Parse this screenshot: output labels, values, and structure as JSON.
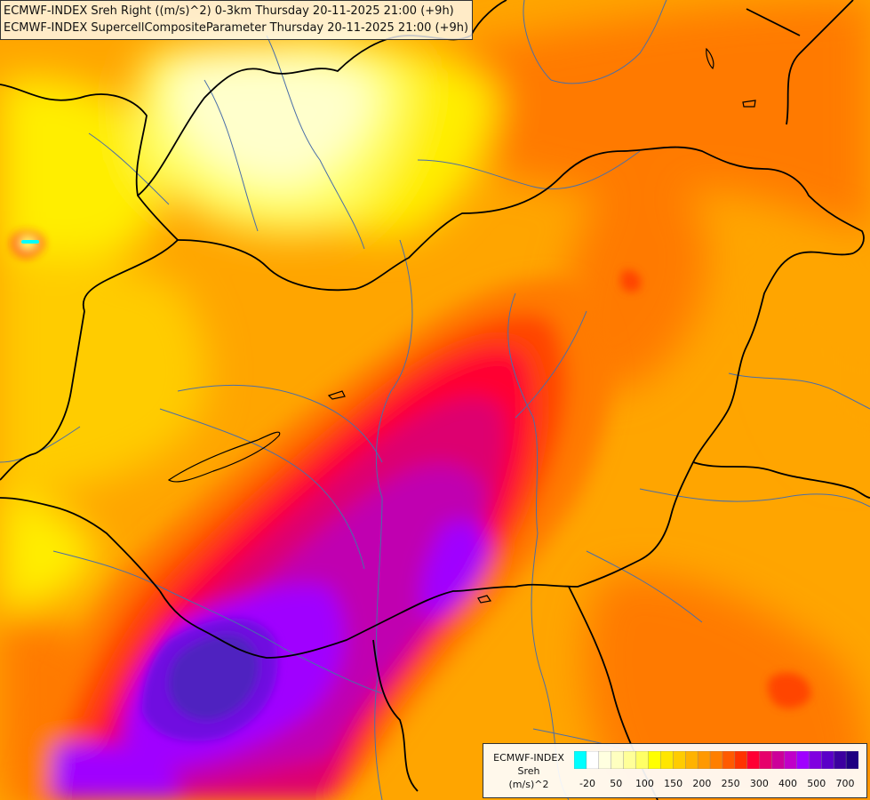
{
  "header": {
    "line1": "ECMWF-INDEX Sreh Right ((m/s)^2) 0-3km Thursday 20-11-2025 21:00 (+9h)",
    "line2": "ECMWF-INDEX SupercellCompositeParameter Thursday 20-11-2025 21:00 (+9h)"
  },
  "legend": {
    "source": "ECMWF-INDEX",
    "variable": "Sreh",
    "unit": "(m/s)^2",
    "colors": [
      "#00ffff",
      "#ffffff",
      "#ffffe0",
      "#ffffc0",
      "#ffff99",
      "#ffff66",
      "#ffff00",
      "#ffe600",
      "#ffcc00",
      "#ffb300",
      "#ff9900",
      "#ff7f00",
      "#ff5a00",
      "#ff3300",
      "#ff0033",
      "#e6006b",
      "#cc0099",
      "#c000c8",
      "#a000ff",
      "#8000e0",
      "#5a00c8",
      "#3c00a0",
      "#1e0082"
    ],
    "ticks": [
      "-20",
      "50",
      "100",
      "150",
      "200",
      "250",
      "300",
      "400",
      "500",
      "700"
    ]
  },
  "map_data": {
    "colors": {
      "pale": "#ffffcc",
      "light_yellow": "#ffff66",
      "yellow": "#ffee00",
      "amber": "#ffcc00",
      "orange": "#ffa500",
      "dark_orange": "#ff7a00",
      "red_orange": "#ff4500",
      "red": "#ff0033",
      "crimson": "#dd0070",
      "magenta": "#c000b0",
      "purple": "#a000ff",
      "violet": "#7010e0",
      "indigo": "#5020c0",
      "cyan": "#00ffff",
      "border": "#000000",
      "river": "#4a6ea8"
    }
  }
}
